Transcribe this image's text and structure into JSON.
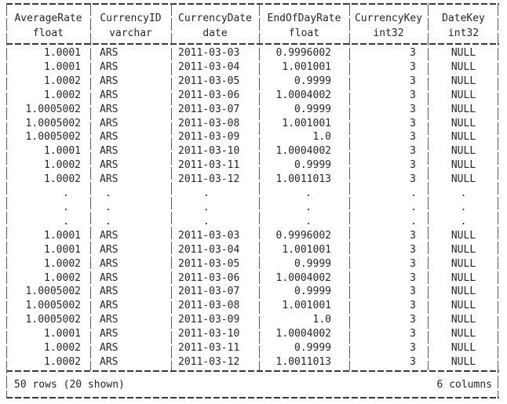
{
  "app": {
    "background_color": "#ffffff",
    "text_color": "#262626",
    "border_color": "#3a3a3a"
  },
  "table": {
    "columns": [
      {
        "name": "AverageRate",
        "type": "float"
      },
      {
        "name": "CurrencyID",
        "type": "varchar"
      },
      {
        "name": "CurrencyDate",
        "type": "date"
      },
      {
        "name": "EndOfDayRate",
        "type": "float"
      },
      {
        "name": "CurrencyKey",
        "type": "int32"
      },
      {
        "name": "DateKey",
        "type": "int32"
      }
    ],
    "rows": [
      {
        "ellipsis": false,
        "cells": [
          "1.0001",
          "ARS",
          "2011-03-03",
          "0.9996002",
          "3",
          "NULL"
        ]
      },
      {
        "ellipsis": false,
        "cells": [
          "1.0001",
          "ARS",
          "2011-03-04",
          "1.001001",
          "3",
          "NULL"
        ]
      },
      {
        "ellipsis": false,
        "cells": [
          "1.0002",
          "ARS",
          "2011-03-05",
          "0.9999",
          "3",
          "NULL"
        ]
      },
      {
        "ellipsis": false,
        "cells": [
          "1.0002",
          "ARS",
          "2011-03-06",
          "1.0004002",
          "3",
          "NULL"
        ]
      },
      {
        "ellipsis": false,
        "cells": [
          "1.0005002",
          "ARS",
          "2011-03-07",
          "0.9999",
          "3",
          "NULL"
        ]
      },
      {
        "ellipsis": false,
        "cells": [
          "1.0005002",
          "ARS",
          "2011-03-08",
          "1.001001",
          "3",
          "NULL"
        ]
      },
      {
        "ellipsis": false,
        "cells": [
          "1.0005002",
          "ARS",
          "2011-03-09",
          "1.0",
          "3",
          "NULL"
        ]
      },
      {
        "ellipsis": false,
        "cells": [
          "1.0001",
          "ARS",
          "2011-03-10",
          "1.0004002",
          "3",
          "NULL"
        ]
      },
      {
        "ellipsis": false,
        "cells": [
          "1.0002",
          "ARS",
          "2011-03-11",
          "0.9999",
          "3",
          "NULL"
        ]
      },
      {
        "ellipsis": false,
        "cells": [
          "1.0002",
          "ARS",
          "2011-03-12",
          "1.0011013",
          "3",
          "NULL"
        ]
      },
      {
        "ellipsis": true,
        "cells": [
          ".",
          ".",
          ".",
          ".",
          ".",
          "."
        ]
      },
      {
        "ellipsis": true,
        "cells": [
          ".",
          ".",
          ".",
          ".",
          ".",
          "."
        ]
      },
      {
        "ellipsis": true,
        "cells": [
          ".",
          ".",
          ".",
          ".",
          ".",
          "."
        ]
      },
      {
        "ellipsis": false,
        "cells": [
          "1.0001",
          "ARS",
          "2011-03-03",
          "0.9996002",
          "3",
          "NULL"
        ]
      },
      {
        "ellipsis": false,
        "cells": [
          "1.0001",
          "ARS",
          "2011-03-04",
          "1.001001",
          "3",
          "NULL"
        ]
      },
      {
        "ellipsis": false,
        "cells": [
          "1.0002",
          "ARS",
          "2011-03-05",
          "0.9999",
          "3",
          "NULL"
        ]
      },
      {
        "ellipsis": false,
        "cells": [
          "1.0002",
          "ARS",
          "2011-03-06",
          "1.0004002",
          "3",
          "NULL"
        ]
      },
      {
        "ellipsis": false,
        "cells": [
          "1.0005002",
          "ARS",
          "2011-03-07",
          "0.9999",
          "3",
          "NULL"
        ]
      },
      {
        "ellipsis": false,
        "cells": [
          "1.0005002",
          "ARS",
          "2011-03-08",
          "1.001001",
          "3",
          "NULL"
        ]
      },
      {
        "ellipsis": false,
        "cells": [
          "1.0005002",
          "ARS",
          "2011-03-09",
          "1.0",
          "3",
          "NULL"
        ]
      },
      {
        "ellipsis": false,
        "cells": [
          "1.0001",
          "ARS",
          "2011-03-10",
          "1.0004002",
          "3",
          "NULL"
        ]
      },
      {
        "ellipsis": false,
        "cells": [
          "1.0002",
          "ARS",
          "2011-03-11",
          "0.9999",
          "3",
          "NULL"
        ]
      },
      {
        "ellipsis": false,
        "cells": [
          "1.0002",
          "ARS",
          "2011-03-12",
          "1.0011013",
          "3",
          "NULL"
        ]
      }
    ],
    "footer": {
      "left": "50 rows (20 shown)",
      "right": "6 columns"
    }
  }
}
